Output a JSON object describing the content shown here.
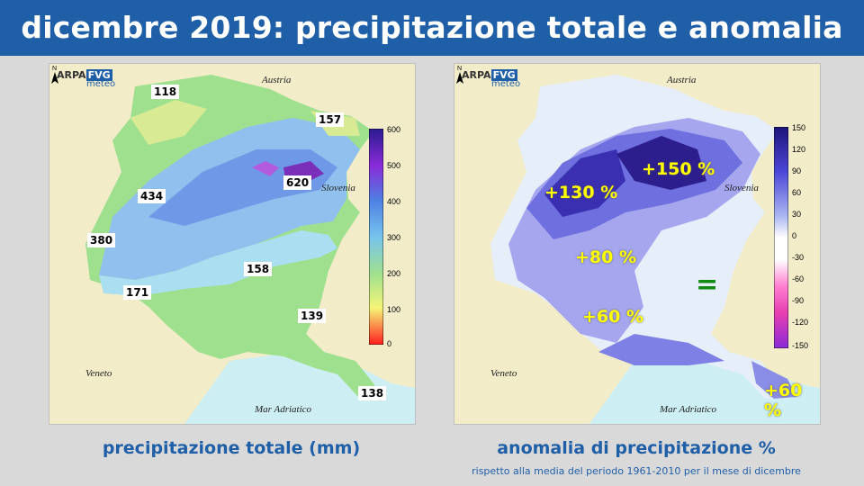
{
  "title": "dicembre 2019: precipitazione totale e anomalia",
  "logo": {
    "part1": "ARPA",
    "part2": "FVG",
    "part3": "meteo"
  },
  "geo_labels": {
    "austria": "Austria",
    "slovenia": "Slovenia",
    "veneto": "Veneto",
    "adriatic": "Mar Adriatico"
  },
  "left_map": {
    "caption": "precipitazione totale (mm)",
    "values": [
      "118",
      "157",
      "434",
      "620",
      "380",
      "158",
      "171",
      "139",
      "138"
    ],
    "legend_ticks": [
      "600",
      "500",
      "400",
      "300",
      "200",
      "100",
      "0"
    ]
  },
  "right_map": {
    "caption": "anomalia di precipitazione %",
    "subcaption": "rispetto alla media del periodo 1961-2010 per il mese di dicembre",
    "anomalies": [
      "+150 %",
      "+130 %",
      "+80 %",
      "+60 %",
      "+60 %"
    ],
    "equal_sign": "=",
    "legend_ticks": [
      "150",
      "120",
      "90",
      "60",
      "30",
      "0",
      "-30",
      "-60",
      "-90",
      "-120",
      "-150"
    ]
  },
  "colors": {
    "banner": "#1f5fa8",
    "caption": "#1f5fa8",
    "anomaly_text": "#ffff00",
    "equal_sign": "#118a11"
  }
}
